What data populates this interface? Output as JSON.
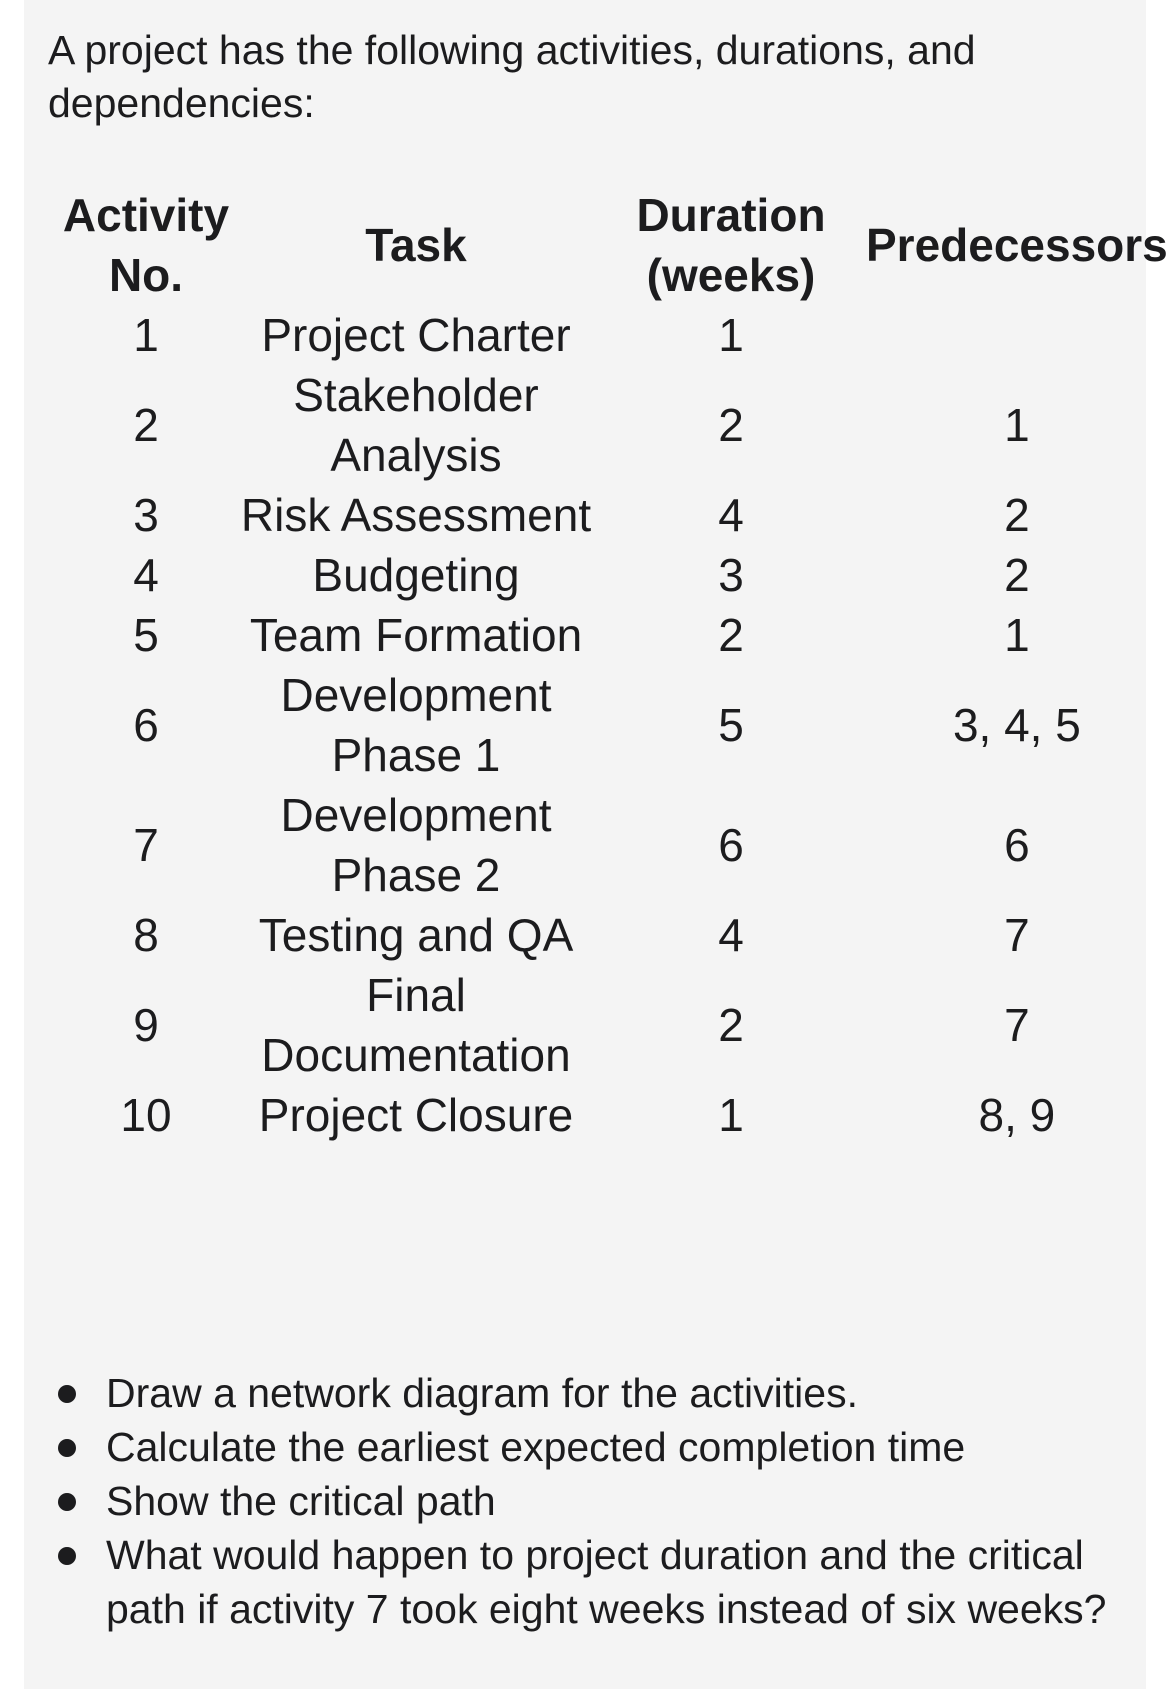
{
  "intro": "A project has the following activities, durations, and dependencies:",
  "table": {
    "headers": {
      "no": "Activity No.",
      "task": "Task",
      "duration": "Duration (weeks)",
      "predecessors": "Predecessors"
    },
    "rows": [
      {
        "no": "1",
        "task": "Project Charter",
        "duration": "1",
        "predecessors": ""
      },
      {
        "no": "2",
        "task": "Stakeholder Analysis",
        "duration": "2",
        "predecessors": "1"
      },
      {
        "no": "3",
        "task": "Risk Assessment",
        "duration": "4",
        "predecessors": "2"
      },
      {
        "no": "4",
        "task": "Budgeting",
        "duration": "3",
        "predecessors": "2"
      },
      {
        "no": "5",
        "task": "Team Formation",
        "duration": "2",
        "predecessors": "1"
      },
      {
        "no": "6",
        "task": "Development Phase 1",
        "duration": "5",
        "predecessors": "3, 4, 5"
      },
      {
        "no": "7",
        "task": "Development Phase 2",
        "duration": "6",
        "predecessors": "6"
      },
      {
        "no": "8",
        "task": "Testing and QA",
        "duration": "4",
        "predecessors": "7"
      },
      {
        "no": "9",
        "task": "Final Documentation",
        "duration": "2",
        "predecessors": "7"
      },
      {
        "no": "10",
        "task": "Project Closure",
        "duration": "1",
        "predecessors": "8, 9"
      }
    ]
  },
  "questions": [
    "Draw a network diagram for the activities.",
    "Calculate the earliest expected completion time",
    "Show the critical path",
    "What would happen to project duration and the critical path if activity 7 took eight weeks instead of six weeks?"
  ]
}
